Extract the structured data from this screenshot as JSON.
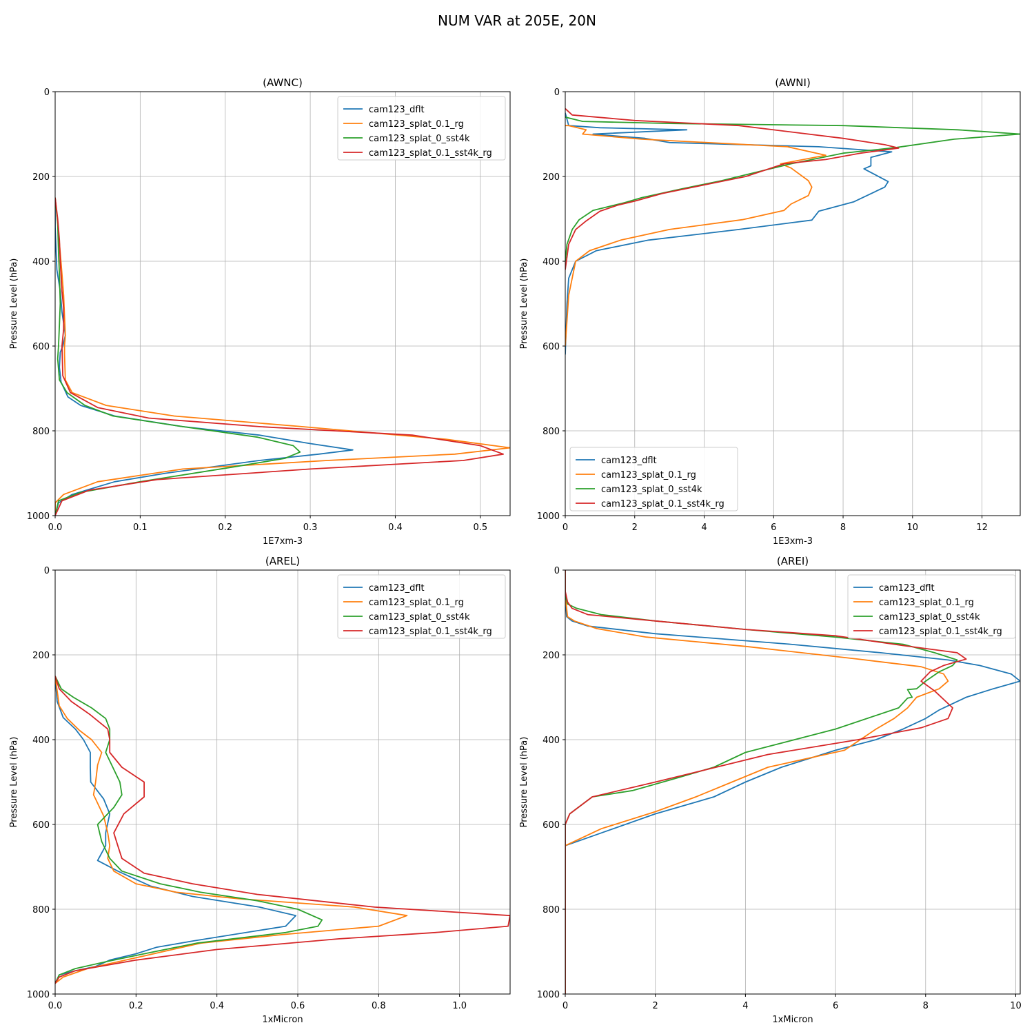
{
  "figure": {
    "suptitle": "NUM VAR at 205E, 20N"
  },
  "colors": {
    "blue": "#1f77b4",
    "orange": "#ff7f0e",
    "green": "#2ca02c",
    "red": "#d62728",
    "grid": "#b0b0b0"
  },
  "chart_data": [
    {
      "type": "line",
      "title": "(AWNC)",
      "xlabel": "1E7xm-3",
      "ylabel": "Pressure Level (hPa)",
      "xlim": [
        0,
        0.535
      ],
      "ylim": [
        1000,
        0
      ],
      "xticks": [
        0,
        0.1,
        0.2,
        0.3,
        0.4,
        0.5
      ],
      "xtick_labels": [
        "0.0",
        "0.1",
        "0.2",
        "0.3",
        "0.4",
        "0.5"
      ],
      "yticks": [
        0,
        200,
        400,
        600,
        800,
        1000
      ],
      "ytick_labels": [
        "0",
        "200",
        "400",
        "600",
        "800",
        "1000"
      ],
      "grid": true,
      "legend_loc": "upper-right",
      "series": [
        {
          "name": "cam123_dflt",
          "color": "blue",
          "x": [
            0,
            0,
            0.002,
            0.006,
            0.008,
            0.011,
            0.012,
            0.009,
            0.006,
            0.005,
            0.007,
            0.015,
            0.03,
            0.07,
            0.15,
            0.24,
            0.3,
            0.35,
            0.31,
            0.24,
            0.13,
            0.07,
            0.02,
            0.004,
            0
          ],
          "y": [
            250,
            320,
            420,
            470,
            520,
            560,
            575,
            600,
            615,
            650,
            685,
            720,
            740,
            765,
            790,
            810,
            830,
            845,
            855,
            870,
            900,
            920,
            950,
            970,
            1000
          ]
        },
        {
          "name": "cam123_splat_0.1_rg",
          "color": "orange",
          "x": [
            0,
            0.003,
            0.006,
            0.008,
            0.01,
            0.011,
            0.012,
            0.011,
            0.011,
            0.012,
            0.02,
            0.06,
            0.14,
            0.29,
            0.46,
            0.535,
            0.47,
            0.32,
            0.15,
            0.05,
            0.01,
            0,
            0
          ],
          "y": [
            250,
            310,
            380,
            430,
            480,
            530,
            575,
            600,
            620,
            680,
            710,
            740,
            765,
            790,
            820,
            840,
            855,
            870,
            890,
            920,
            950,
            970,
            1000
          ]
        },
        {
          "name": "cam123_splat_0_sst4k",
          "color": "green",
          "x": [
            0,
            0.003,
            0.004,
            0.005,
            0.006,
            0.005,
            0.004,
            0.003,
            0.005,
            0.014,
            0.035,
            0.068,
            0.15,
            0.238,
            0.28,
            0.288,
            0.27,
            0.21,
            0.1,
            0.03,
            0.004,
            0
          ],
          "y": [
            250,
            310,
            380,
            430,
            500,
            550,
            600,
            630,
            680,
            710,
            740,
            765,
            790,
            815,
            835,
            850,
            865,
            885,
            920,
            945,
            965,
            1000
          ]
        },
        {
          "name": "cam123_splat_0.1_sst4k_rg",
          "color": "red",
          "x": [
            0,
            0.003,
            0.005,
            0.006,
            0.008,
            0.01,
            0.01,
            0.008,
            0.009,
            0.018,
            0.05,
            0.11,
            0.24,
            0.42,
            0.5,
            0.527,
            0.48,
            0.3,
            0.12,
            0.04,
            0.008,
            0
          ],
          "y": [
            250,
            300,
            350,
            400,
            470,
            510,
            560,
            600,
            670,
            710,
            745,
            770,
            790,
            810,
            835,
            855,
            870,
            890,
            915,
            940,
            965,
            1000
          ]
        }
      ]
    },
    {
      "type": "line",
      "title": "(AWNI)",
      "xlabel": "1E3xm-3",
      "ylabel": "Pressure Level (hPa)",
      "xlim": [
        0,
        13.1
      ],
      "ylim": [
        1000,
        0
      ],
      "xticks": [
        0,
        2,
        4,
        6,
        8,
        10,
        12
      ],
      "xtick_labels": [
        "0",
        "2",
        "4",
        "6",
        "8",
        "10",
        "12"
      ],
      "yticks": [
        0,
        200,
        400,
        600,
        800,
        1000
      ],
      "ytick_labels": [
        "0",
        "200",
        "400",
        "600",
        "800",
        "1000"
      ],
      "grid": true,
      "legend_loc": "lower-left",
      "series": [
        {
          "name": "cam123_dflt",
          "color": "blue",
          "x": [
            0,
            0.1,
            1,
            3.5,
            0.8,
            2.3,
            3,
            7.3,
            9.4,
            8.8,
            8.8,
            8.6,
            9.3,
            9.2,
            8.3,
            7.3,
            7.1,
            5,
            2.4,
            0.9,
            0.3,
            0.1,
            0.05,
            0
          ],
          "y": [
            50,
            80,
            85,
            90,
            100,
            110,
            120,
            130,
            142,
            155,
            175,
            182,
            212,
            225,
            260,
            282,
            303,
            325,
            350,
            375,
            400,
            440,
            500,
            620
          ]
        },
        {
          "name": "cam123_splat_0.1_rg",
          "color": "orange",
          "x": [
            0,
            0.1,
            0.6,
            0.5,
            2.2,
            6.4,
            7.5,
            6.2,
            6.5,
            7,
            7.1,
            7,
            6.5,
            6.3,
            5.1,
            3,
            1.6,
            0.7,
            0.3,
            0.1,
            0
          ],
          "y": [
            80,
            80,
            90,
            100,
            112,
            130,
            150,
            170,
            180,
            210,
            225,
            245,
            265,
            280,
            302,
            325,
            350,
            375,
            400,
            480,
            600
          ]
        },
        {
          "name": "cam123_splat_0_sst4k",
          "color": "green",
          "x": [
            0,
            0.5,
            3,
            8,
            11.3,
            13.1,
            11.2,
            9.5,
            8,
            6.5,
            4.5,
            3.3,
            2.2,
            1.7,
            0.8,
            0.4,
            0.2,
            0.05,
            0
          ],
          "y": [
            60,
            70,
            75,
            80,
            90,
            100,
            112,
            132,
            145,
            170,
            210,
            230,
            250,
            262,
            280,
            302,
            325,
            360,
            400
          ]
        },
        {
          "name": "cam123_splat_0.1_sst4k_rg",
          "color": "red",
          "x": [
            0,
            0.2,
            2,
            5,
            8,
            9.2,
            9.6,
            8.5,
            7.5,
            6.3,
            5.2,
            4,
            2.8,
            2,
            1.5,
            1,
            0.6,
            0.3,
            0.1,
            0
          ],
          "y": [
            40,
            55,
            68,
            80,
            110,
            125,
            133,
            145,
            160,
            170,
            200,
            220,
            240,
            258,
            268,
            282,
            305,
            325,
            360,
            420
          ]
        }
      ]
    },
    {
      "type": "line",
      "title": "(AREL)",
      "xlabel": "1xMicron",
      "ylabel": "Pressure Level (hPa)",
      "xlim": [
        0,
        1.125
      ],
      "ylim": [
        1000,
        0
      ],
      "xticks": [
        0,
        0.2,
        0.4,
        0.6,
        0.8,
        1.0
      ],
      "xtick_labels": [
        "0.0",
        "0.2",
        "0.4",
        "0.6",
        "0.8",
        "1.0"
      ],
      "yticks": [
        0,
        200,
        400,
        600,
        800,
        1000
      ],
      "ytick_labels": [
        "0",
        "200",
        "400",
        "600",
        "800",
        "1000"
      ],
      "grid": true,
      "legend_loc": "upper-right",
      "series": [
        {
          "name": "cam123_dflt",
          "color": "blue",
          "x": [
            0,
            0.005,
            0.02,
            0.05,
            0.07,
            0.087,
            0.087,
            0.088,
            0.12,
            0.135,
            0.125,
            0.125,
            0.105,
            0.155,
            0.235,
            0.34,
            0.505,
            0.595,
            0.57,
            0.34,
            0.25,
            0.2,
            0.135,
            0.1,
            0.05,
            0.01,
            0
          ],
          "y": [
            250,
            310,
            348,
            375,
            400,
            430,
            465,
            500,
            540,
            575,
            620,
            650,
            685,
            710,
            745,
            770,
            795,
            815,
            840,
            875,
            890,
            905,
            920,
            935,
            945,
            955,
            975
          ]
        },
        {
          "name": "cam123_splat_0.1_rg",
          "color": "orange",
          "x": [
            0,
            0.01,
            0.03,
            0.06,
            0.09,
            0.115,
            0.105,
            0.1,
            0.095,
            0.1,
            0.12,
            0.13,
            0.135,
            0.13,
            0.145,
            0.2,
            0.3,
            0.45,
            0.74,
            0.87,
            0.8,
            0.56,
            0.36,
            0.22,
            0.08,
            0.02,
            0
          ],
          "y": [
            250,
            320,
            350,
            378,
            400,
            430,
            460,
            500,
            530,
            540,
            580,
            620,
            650,
            680,
            710,
            740,
            760,
            775,
            795,
            815,
            840,
            860,
            880,
            910,
            940,
            960,
            975
          ]
        },
        {
          "name": "cam123_splat_0_sst4k",
          "color": "green",
          "x": [
            0,
            0.015,
            0.045,
            0.09,
            0.125,
            0.135,
            0.135,
            0.125,
            0.14,
            0.16,
            0.165,
            0.145,
            0.105,
            0.115,
            0.135,
            0.165,
            0.26,
            0.36,
            0.5,
            0.6,
            0.66,
            0.65,
            0.57,
            0.35,
            0.22,
            0.12,
            0.05,
            0.01,
            0
          ],
          "y": [
            250,
            280,
            300,
            325,
            350,
            375,
            400,
            430,
            460,
            500,
            530,
            560,
            600,
            640,
            680,
            710,
            740,
            760,
            780,
            800,
            825,
            840,
            855,
            880,
            905,
            925,
            940,
            955,
            975
          ]
        },
        {
          "name": "cam123_splat_0.1_sst4k_rg",
          "color": "red",
          "x": [
            0,
            0.01,
            0.04,
            0.085,
            0.13,
            0.135,
            0.135,
            0.165,
            0.22,
            0.22,
            0.17,
            0.145,
            0.155,
            0.165,
            0.22,
            0.34,
            0.5,
            0.79,
            1.125,
            1.12,
            0.94,
            0.7,
            0.4,
            0.2,
            0.05,
            0.01,
            0
          ],
          "y": [
            250,
            280,
            310,
            340,
            375,
            400,
            430,
            465,
            500,
            535,
            575,
            620,
            650,
            680,
            715,
            740,
            765,
            795,
            815,
            840,
            855,
            870,
            895,
            920,
            945,
            960,
            975
          ]
        }
      ]
    },
    {
      "type": "line",
      "title": "(AREI)",
      "xlabel": "1xMicron",
      "ylabel": "Pressure Level (hPa)",
      "xlim": [
        0,
        10.1
      ],
      "ylim": [
        1000,
        0
      ],
      "xticks": [
        0,
        2,
        4,
        6,
        8,
        10
      ],
      "xtick_labels": [
        "0",
        "2",
        "4",
        "6",
        "8",
        "10"
      ],
      "yticks": [
        0,
        200,
        400,
        600,
        800,
        1000
      ],
      "ytick_labels": [
        "0",
        "200",
        "400",
        "600",
        "800",
        "1000"
      ],
      "grid": true,
      "legend_loc": "upper-right",
      "series": [
        {
          "name": "cam123_dflt",
          "color": "blue",
          "x": [
            0,
            0,
            0.03,
            0.15,
            0.5,
            2,
            5,
            7,
            8.5,
            9.2,
            9.9,
            10.1,
            9.5,
            8.9,
            8.4,
            8.3,
            8,
            7.5,
            6.9,
            6,
            4.8,
            4,
            3.3,
            2,
            0.8,
            0,
            0,
            0
          ],
          "y": [
            0,
            60,
            110,
            120,
            132,
            150,
            175,
            195,
            212,
            225,
            245,
            262,
            280,
            300,
            325,
            330,
            350,
            375,
            400,
            425,
            465,
            500,
            535,
            575,
            620,
            650,
            680,
            1000
          ]
        },
        {
          "name": "cam123_splat_0.1_rg",
          "color": "orange",
          "x": [
            0,
            0,
            0.05,
            0.2,
            0.7,
            1.8,
            4,
            6.5,
            7.9,
            8.4,
            8.5,
            8.3,
            7.8,
            7.6,
            7.3,
            6.9,
            6.2,
            4.5,
            3.7,
            2.9,
            2,
            0.8,
            0,
            0,
            0
          ],
          "y": [
            0,
            60,
            110,
            120,
            138,
            158,
            180,
            210,
            228,
            245,
            262,
            280,
            300,
            325,
            350,
            375,
            425,
            465,
            500,
            535,
            570,
            610,
            650,
            680,
            1000
          ]
        },
        {
          "name": "cam123_splat_0_sst4k",
          "color": "green",
          "x": [
            0,
            0,
            0.05,
            0.25,
            0.8,
            2,
            4,
            6,
            7.5,
            8.2,
            8.7,
            8.6,
            8.3,
            8,
            7.8,
            7.6,
            7.7,
            7.6,
            7.4,
            6,
            4,
            3.3,
            2.5,
            1.5,
            0.6,
            0.1,
            0,
            0
          ],
          "y": [
            0,
            60,
            80,
            90,
            105,
            120,
            140,
            158,
            175,
            195,
            212,
            225,
            240,
            262,
            280,
            282,
            300,
            302,
            325,
            375,
            430,
            465,
            490,
            520,
            535,
            575,
            600,
            1000
          ]
        },
        {
          "name": "cam123_splat_0.1_sst4k_rg",
          "color": "red",
          "x": [
            0,
            0,
            0.05,
            0.15,
            0.5,
            2,
            4,
            6,
            7.5,
            8.7,
            8.9,
            8.4,
            8.1,
            7.9,
            8.2,
            8.6,
            8.5,
            7.9,
            6.5,
            4.5,
            2,
            0.6,
            0.1,
            0,
            0
          ],
          "y": [
            0,
            50,
            75,
            90,
            105,
            120,
            140,
            155,
            178,
            195,
            210,
            225,
            240,
            262,
            285,
            325,
            350,
            372,
            400,
            435,
            500,
            535,
            575,
            600,
            1000
          ]
        }
      ]
    }
  ]
}
